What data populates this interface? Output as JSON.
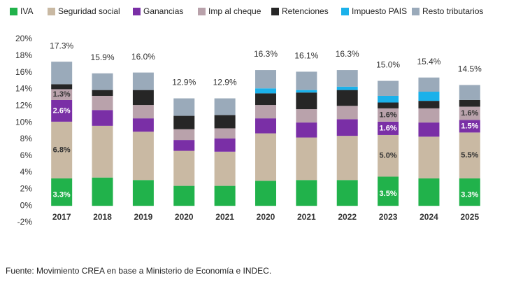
{
  "chart_data": {
    "type": "stacked_bar",
    "categories": [
      "2017",
      "2018",
      "2019",
      "2020",
      "2021",
      "2020",
      "2021",
      "2022",
      "2023",
      "2024",
      "2025"
    ],
    "series": [
      {
        "name": "IVA",
        "color": "#21b24b",
        "values": [
          3.3,
          3.4,
          3.1,
          2.4,
          2.4,
          3.0,
          3.1,
          3.1,
          3.5,
          3.3,
          3.3
        ],
        "value_labels": [
          "3.3%",
          null,
          null,
          null,
          null,
          null,
          null,
          null,
          "3.5%",
          null,
          "3.3%"
        ]
      },
      {
        "name": "Seguridad social",
        "color": "#c9b9a3",
        "values": [
          6.8,
          6.2,
          5.8,
          4.2,
          4.1,
          5.7,
          5.1,
          5.3,
          5.0,
          5.0,
          5.5
        ],
        "value_labels": [
          "6.8%",
          null,
          null,
          null,
          null,
          null,
          null,
          null,
          "5.0%",
          null,
          "5.5%"
        ]
      },
      {
        "name": "Ganancias",
        "color": "#7a2fa6",
        "values": [
          2.6,
          1.9,
          1.6,
          1.3,
          1.6,
          1.8,
          1.8,
          2.0,
          1.6,
          1.7,
          1.5
        ],
        "value_labels": [
          "2.6%",
          null,
          null,
          null,
          null,
          null,
          null,
          null,
          "1.6%",
          null,
          "1.5%"
        ]
      },
      {
        "name": "Imp al cheque",
        "color": "#b9a2ab",
        "values": [
          1.3,
          1.7,
          1.6,
          1.3,
          1.2,
          1.6,
          1.6,
          1.6,
          1.6,
          1.7,
          1.6
        ],
        "value_labels": [
          "1.3%",
          null,
          null,
          null,
          null,
          null,
          null,
          null,
          "1.6%",
          null,
          "1.6%"
        ]
      },
      {
        "name": "Retenciones",
        "color": "#262626",
        "values": [
          0.6,
          0.7,
          1.8,
          1.6,
          1.6,
          1.4,
          2.0,
          1.9,
          0.7,
          0.9,
          0.8
        ]
      },
      {
        "name": "Impuesto PAIS",
        "color": "#1bb1ea",
        "values": [
          0,
          0,
          0,
          0,
          0,
          0.6,
          0.3,
          0.4,
          0.8,
          1.1,
          0
        ]
      },
      {
        "name": "Resto tributarios",
        "color": "#9aaaba",
        "values": [
          2.7,
          2.0,
          2.1,
          2.1,
          2.0,
          2.2,
          2.2,
          2.0,
          1.8,
          1.7,
          1.8
        ]
      }
    ],
    "totals": [
      17.3,
      15.9,
      16.0,
      12.9,
      12.9,
      16.3,
      16.1,
      16.3,
      15.0,
      15.4,
      14.5
    ],
    "total_labels": [
      "17.3%",
      "15.9%",
      "16.0%",
      "12.9%",
      "12.9%",
      "16.3%",
      "16.1%",
      "16.3%",
      "15.0%",
      "15.4%",
      "14.5%"
    ],
    "ylim": [
      -2,
      20
    ],
    "yticks": [
      {
        "value": -2,
        "label": "-2%"
      },
      {
        "value": 0,
        "label": "0%"
      },
      {
        "value": 2,
        "label": "2%"
      },
      {
        "value": 4,
        "label": "4%"
      },
      {
        "value": 6,
        "label": "6%"
      },
      {
        "value": 8,
        "label": "8%"
      },
      {
        "value": 10,
        "label": "10%"
      },
      {
        "value": 12,
        "label": "12%"
      },
      {
        "value": 14,
        "label": "14%"
      },
      {
        "value": 16,
        "label": "16%"
      },
      {
        "value": 18,
        "label": "18%"
      },
      {
        "value": 20,
        "label": "20%"
      }
    ],
    "grid": false,
    "source": "Fuente: Movimiento CREA en base a Ministerio de Economía e INDEC."
  }
}
